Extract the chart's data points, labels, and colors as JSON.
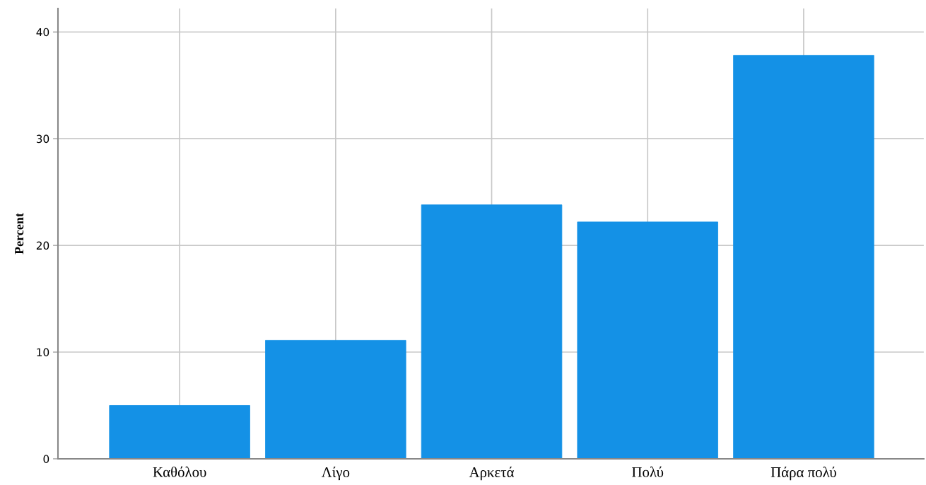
{
  "chart_data": {
    "type": "bar",
    "ylabel": "Percent",
    "categories": [
      "Καθόλου",
      "Λίγο",
      "Αρκετά",
      "Πολύ",
      "Πάρα πολύ"
    ],
    "values": [
      5.0,
      11.1,
      23.8,
      22.2,
      37.8
    ],
    "color": "#1491e6",
    "ylim": [
      0,
      42.2
    ],
    "yticks": [
      0,
      10,
      20,
      30,
      40
    ],
    "grid": true
  }
}
